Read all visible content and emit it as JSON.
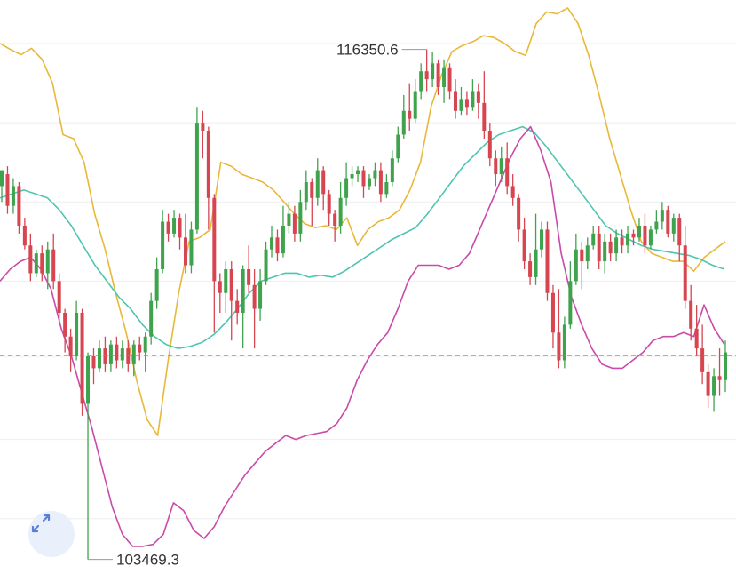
{
  "chart_data": {
    "type": "candlestick",
    "title": "",
    "xlabel": "",
    "ylabel": "",
    "ylim": [
      102900,
      117600
    ],
    "grid": true,
    "reference_line": 108620,
    "annotations": {
      "max_label": "116350.6",
      "min_label": "103469.3",
      "max_value": 116350.6,
      "min_value": 103469.3
    },
    "colors": {
      "up": "#3fa34d",
      "down": "#d64550",
      "upper_band": "#e8b83a",
      "middle_band": "#4ec5b0",
      "lower_band": "#c94aa8",
      "reference": "#8a8a8a"
    },
    "series": [
      {
        "role": "upper",
        "values": [
          116500,
          116350,
          116220,
          116380,
          116100,
          115500,
          114200,
          114100,
          113500,
          112200,
          111300,
          110200,
          109200,
          108000,
          107000,
          106600,
          108500,
          110200,
          111500,
          111600,
          111800,
          113500,
          113400,
          113200,
          113100,
          113000,
          112800,
          112500,
          112200,
          111950,
          111850,
          111900,
          111800,
          112100,
          111400,
          111800,
          112000,
          112100,
          112300,
          112800,
          113500,
          114900,
          115700,
          116300,
          116450,
          116550,
          116700,
          116650,
          116500,
          116300,
          116200,
          117000,
          117300,
          117250,
          117400,
          117000,
          116200,
          115200,
          114100,
          113200,
          112300,
          111500,
          111200,
          111100,
          111000,
          111000,
          110750,
          111100,
          111300,
          111500
        ]
      },
      {
        "role": "middle",
        "values": [
          112600,
          112700,
          112800,
          112700,
          112600,
          112300,
          111900,
          111400,
          110900,
          110500,
          110100,
          109800,
          109400,
          109100,
          108900,
          108800,
          108850,
          108950,
          109150,
          109450,
          109800,
          110200,
          110500,
          110600,
          110700,
          110700,
          110600,
          110650,
          110600,
          110750,
          110950,
          111150,
          111350,
          111550,
          111700,
          111850,
          112200,
          112600,
          113000,
          113400,
          113700,
          114000,
          114200,
          114300,
          114400,
          114250,
          113900,
          113500,
          113100,
          112700,
          112300,
          111900,
          111700,
          111550,
          111400,
          111300,
          111250,
          111200,
          111150,
          111050,
          110900,
          110800
        ]
      },
      {
        "role": "lower",
        "values": [
          110500,
          110800,
          111000,
          111100,
          110800,
          110300,
          109300,
          108600,
          107700,
          106800,
          105800,
          104800,
          104100,
          103800,
          103800,
          103850,
          104100,
          104900,
          104700,
          104200,
          104000,
          104300,
          104800,
          105200,
          105600,
          105900,
          106200,
          106400,
          106600,
          106500,
          106600,
          106650,
          106700,
          106900,
          107300,
          108000,
          108500,
          108900,
          109200,
          109800,
          110500,
          110900,
          110900,
          110900,
          110800,
          110900,
          111200,
          111800,
          112400,
          113000,
          113600,
          114100,
          114400,
          113800,
          113000,
          111200,
          110100,
          109400,
          108800,
          108400,
          108300,
          108300,
          108500,
          108700,
          109000,
          109100,
          109100,
          109200,
          109100,
          109900,
          109300,
          108900
        ]
      },
      {
        "role": "candles",
        "values": [
          [
            112900,
            113300,
            113300,
            112500
          ],
          [
            113200,
            112400,
            113400,
            112200
          ],
          [
            112400,
            112900,
            113100,
            112200
          ],
          [
            112900,
            111900,
            113000,
            111700
          ],
          [
            111900,
            111400,
            112100,
            111300
          ],
          [
            111400,
            110700,
            111700,
            110500
          ],
          [
            110700,
            111200,
            111300,
            110600
          ],
          [
            111200,
            110700,
            111400,
            110500
          ],
          [
            110700,
            111300,
            111500,
            110300
          ],
          [
            111300,
            110500,
            111700,
            110300
          ],
          [
            110500,
            109700,
            110700,
            109500
          ],
          [
            109700,
            109100,
            109800,
            108700
          ],
          [
            109100,
            108600,
            109300,
            108200
          ],
          [
            108600,
            109700,
            110000,
            108500
          ],
          [
            109700,
            107400,
            109800,
            107100
          ],
          [
            107400,
            108600,
            108700,
            103469.3
          ],
          [
            108600,
            108300,
            108800,
            107900
          ],
          [
            108300,
            108800,
            109000,
            108200
          ],
          [
            108800,
            108400,
            109100,
            108200
          ],
          [
            108400,
            108900,
            109000,
            108200
          ],
          [
            108900,
            108500,
            109100,
            108300
          ],
          [
            108500,
            108800,
            109000,
            108300
          ],
          [
            108800,
            108400,
            109000,
            108200
          ],
          [
            108400,
            108900,
            109000,
            108100
          ],
          [
            108900,
            108700,
            109100,
            108500
          ],
          [
            108700,
            109100,
            109200,
            108200
          ],
          [
            109100,
            110000,
            110200,
            108900
          ],
          [
            110000,
            110800,
            111100,
            109800
          ],
          [
            110800,
            112000,
            112300,
            110700
          ],
          [
            112000,
            111700,
            112200,
            111500
          ],
          [
            111700,
            112100,
            112300,
            111600
          ],
          [
            112100,
            111600,
            112200,
            111300
          ],
          [
            111600,
            110900,
            112200,
            110700
          ],
          [
            110900,
            111800,
            112000,
            110700
          ],
          [
            111800,
            114500,
            114900,
            111700
          ],
          [
            114500,
            114300,
            114800,
            113600
          ],
          [
            114300,
            112600,
            114400,
            111800
          ],
          [
            112600,
            110500,
            112700,
            109200
          ],
          [
            110500,
            110200,
            110700,
            109700
          ],
          [
            110200,
            110800,
            111000,
            109700
          ],
          [
            110800,
            110000,
            111000,
            109000
          ],
          [
            110000,
            109700,
            110300,
            109400
          ],
          [
            109700,
            110800,
            110900,
            108800
          ],
          [
            110800,
            110400,
            111400,
            110200
          ],
          [
            110400,
            109800,
            110800,
            108800
          ],
          [
            109800,
            110500,
            110800,
            109500
          ],
          [
            110500,
            111300,
            111500,
            110400
          ],
          [
            111300,
            111600,
            111900,
            111100
          ],
          [
            111600,
            111200,
            111800,
            111000
          ],
          [
            111200,
            111900,
            112400,
            111100
          ],
          [
            111900,
            112200,
            112500,
            111700
          ],
          [
            112200,
            111700,
            112400,
            111500
          ],
          [
            111700,
            112500,
            112800,
            111500
          ],
          [
            112500,
            113000,
            113300,
            112300
          ],
          [
            113000,
            112600,
            113100,
            111900
          ],
          [
            112600,
            113300,
            113600,
            112400
          ],
          [
            113300,
            112700,
            113400,
            112300
          ],
          [
            112700,
            112200,
            112800,
            111900
          ],
          [
            112200,
            111900,
            112300,
            111500
          ],
          [
            111900,
            112600,
            113000,
            111700
          ],
          [
            112600,
            113100,
            113500,
            112400
          ],
          [
            113100,
            113200,
            113400,
            112900
          ],
          [
            113200,
            113300,
            113400,
            113000
          ],
          [
            113300,
            112900,
            113400,
            112600
          ],
          [
            112900,
            113100,
            113200,
            112800
          ],
          [
            113100,
            113300,
            113500,
            112900
          ],
          [
            113300,
            112700,
            113500,
            112500
          ],
          [
            112700,
            113000,
            113200,
            112600
          ],
          [
            113000,
            113600,
            113800,
            112900
          ],
          [
            113600,
            114200,
            114400,
            113500
          ],
          [
            114200,
            114800,
            115200,
            114100
          ],
          [
            114800,
            114600,
            115500,
            114300
          ],
          [
            114600,
            115300,
            115600,
            114500
          ],
          [
            115300,
            115800,
            116000,
            115100
          ],
          [
            115800,
            115600,
            116350.6,
            115300
          ],
          [
            115600,
            116000,
            116300,
            115400
          ],
          [
            116000,
            115400,
            116100,
            115200
          ],
          [
            115400,
            115900,
            116100,
            115000
          ],
          [
            115900,
            115300,
            116000,
            115100
          ],
          [
            115300,
            114800,
            115600,
            114600
          ],
          [
            114800,
            115100,
            115400,
            114700
          ],
          [
            115100,
            114900,
            115300,
            114700
          ],
          [
            114900,
            115300,
            115600,
            114800
          ],
          [
            115300,
            115000,
            115500,
            114600
          ],
          [
            115000,
            114300,
            115800,
            114100
          ],
          [
            114300,
            113600,
            114500,
            113400
          ],
          [
            113600,
            113200,
            113800,
            112900
          ],
          [
            113200,
            113600,
            113900,
            113000
          ],
          [
            113600,
            112900,
            114000,
            112700
          ],
          [
            112900,
            112600,
            113200,
            112400
          ],
          [
            112600,
            111800,
            112700,
            111500
          ],
          [
            111800,
            111000,
            112100,
            110800
          ],
          [
            111000,
            110600,
            111200,
            110400
          ],
          [
            110600,
            111300,
            112200,
            110400
          ],
          [
            111300,
            111800,
            112000,
            111100
          ],
          [
            111800,
            110200,
            112000,
            110000
          ],
          [
            110200,
            109200,
            110400,
            108800
          ],
          [
            109200,
            108500,
            110300,
            108300
          ],
          [
            108500,
            109400,
            109600,
            108300
          ],
          [
            109400,
            110500,
            111000,
            109300
          ],
          [
            110500,
            111300,
            111700,
            110400
          ],
          [
            111300,
            111000,
            111500,
            110300
          ],
          [
            111000,
            111400,
            111600,
            110800
          ],
          [
            111400,
            111700,
            111900,
            111300
          ],
          [
            111700,
            111000,
            111900,
            110800
          ],
          [
            111000,
            111500,
            111700,
            110700
          ],
          [
            111500,
            111200,
            111700,
            111000
          ],
          [
            111200,
            111600,
            111800,
            111000
          ],
          [
            111600,
            111400,
            111800,
            111200
          ],
          [
            111400,
            111700,
            111900,
            111200
          ],
          [
            111700,
            111600,
            111800,
            111400
          ],
          [
            111600,
            111900,
            112100,
            111500
          ],
          [
            111900,
            111400,
            112200,
            111200
          ],
          [
            111400,
            111800,
            111900,
            111300
          ],
          [
            111800,
            112000,
            112300,
            111700
          ],
          [
            112000,
            112300,
            112500,
            111800
          ],
          [
            112300,
            111700,
            112400,
            111600
          ],
          [
            111700,
            112100,
            112200,
            111500
          ],
          [
            112100,
            111400,
            112200,
            111000
          ],
          [
            111400,
            110000,
            111900,
            109800
          ],
          [
            110000,
            109300,
            110400,
            109000
          ],
          [
            109300,
            108800,
            109900,
            108600
          ],
          [
            108800,
            108200,
            109400,
            107900
          ],
          [
            108200,
            107600,
            108400,
            107300
          ],
          [
            107600,
            108100,
            108300,
            107200
          ],
          [
            108100,
            108000,
            108800,
            107600
          ],
          [
            108000,
            108700,
            109000,
            107700
          ]
        ]
      }
    ]
  },
  "controls": {
    "expand_icon": "expand-arrows-icon"
  }
}
